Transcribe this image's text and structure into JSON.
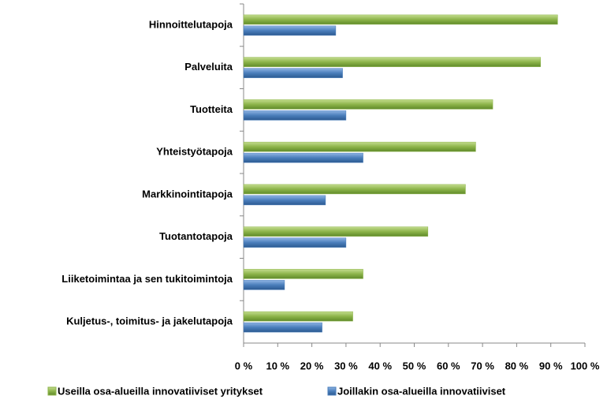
{
  "chart_data": {
    "type": "barh",
    "categories": [
      "Hinnoittelutapoja",
      "Palveluita",
      "Tuotteita",
      "Yhteistyötapoja",
      "Markkinointitapoja",
      "Tuotantotapoja",
      "Liiketoimintaa ja sen tukitoimintoja",
      "Kuljetus-, toimitus- ja jakelutapoja"
    ],
    "series": [
      {
        "name": "Useilla osa-alueilla innovatiiviset yritykset",
        "color": "#8db44a",
        "values": [
          92,
          87,
          73,
          68,
          65,
          54,
          35,
          32
        ]
      },
      {
        "name": "Joillakin osa-alueilla innovatiiviset",
        "color": "#4a7ebb",
        "values": [
          27,
          29,
          30,
          35,
          24,
          30,
          12,
          23
        ]
      }
    ],
    "xlim": [
      0,
      100
    ],
    "xticks": [
      {
        "value": 0,
        "label": "0 %"
      },
      {
        "value": 10,
        "label": "10 %"
      },
      {
        "value": 20,
        "label": "20 %"
      },
      {
        "value": 30,
        "label": "30 %"
      },
      {
        "value": 40,
        "label": "40 %"
      },
      {
        "value": 50,
        "label": "50 %"
      },
      {
        "value": 60,
        "label": "60 %"
      },
      {
        "value": 70,
        "label": "70 %"
      },
      {
        "value": 80,
        "label": "80 %"
      },
      {
        "value": 90,
        "label": "90 %"
      },
      {
        "value": 100,
        "label": "100 %"
      }
    ],
    "grid": false,
    "legend": "bottom"
  }
}
